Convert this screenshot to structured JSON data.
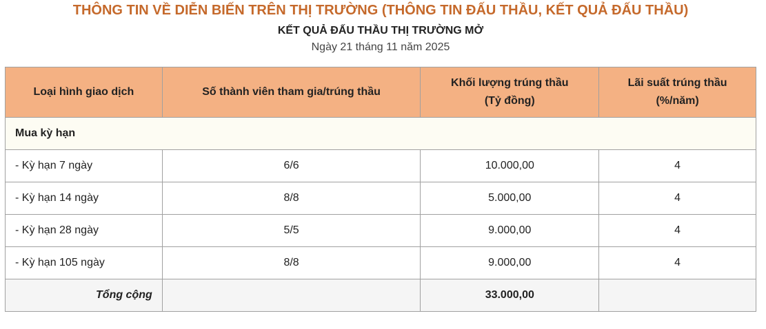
{
  "title": "THÔNG TIN VỀ DIỄN BIẾN TRÊN THỊ TRƯỜNG (THÔNG TIN ĐẤU THẦU, KẾT QUẢ ĐẤU THẦU)",
  "subtitle": "KẾT QUẢ ĐẤU THẦU THỊ TRƯỜNG MỞ",
  "date": "Ngày 21 tháng 11 năm 2025",
  "colors": {
    "title": "#c5692b",
    "header_bg": "#f4b183",
    "group_bg": "#fdfcf3",
    "total_bg": "#f5f5f5"
  },
  "table": {
    "headers": [
      "Loại hình giao dịch",
      "Số thành viên tham gia/trúng thầu",
      "Khối lượng trúng thầu",
      "Lãi suất trúng thầu"
    ],
    "header_units": [
      "",
      "",
      "(Tỷ đồng)",
      "(%/năm)"
    ],
    "group": "Mua kỳ hạn",
    "rows": [
      [
        "- Kỳ hạn 7 ngày",
        "6/6",
        "10.000,00",
        "4"
      ],
      [
        "- Kỳ hạn 14 ngày",
        "8/8",
        "5.000,00",
        "4"
      ],
      [
        "- Kỳ hạn 28 ngày",
        "5/5",
        "9.000,00",
        "4"
      ],
      [
        "- Kỳ hạn 105 ngày",
        "8/8",
        "9.000,00",
        "4"
      ]
    ],
    "total": [
      "Tổng cộng",
      "",
      "33.000,00",
      ""
    ]
  }
}
